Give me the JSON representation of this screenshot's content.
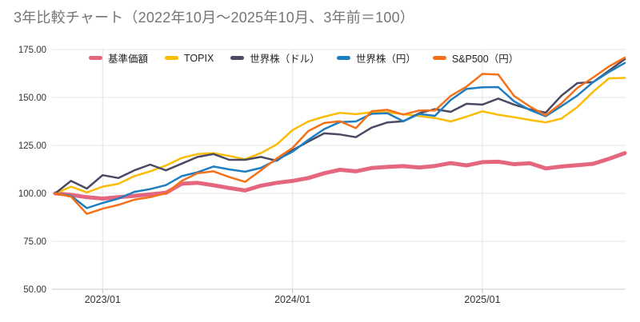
{
  "title": "3年比較チャート（2022年10月～2025年10月、3年前＝100）",
  "legend": [
    {
      "label": "基準価額",
      "color": "#E5667F"
    },
    {
      "label": "TOPIX",
      "color": "#FBBC04"
    },
    {
      "label": "世界株（ドル）",
      "color": "#4C4A63"
    },
    {
      "label": "世界株（円）",
      "color": "#1F7EC2"
    },
    {
      "label": "S&P500（円）",
      "color": "#F57119"
    }
  ],
  "chart_data": {
    "type": "line",
    "title": "3年比較チャート（2022年10月～2025年10月、3年前＝100）",
    "x_start": "2022/10",
    "x_end": "2025/10",
    "baseline_note": "3年前＝100",
    "grid": true,
    "legend_position": "top",
    "y_axis": {
      "min": 50,
      "max": 175,
      "ticks": [
        175,
        150,
        125,
        100,
        75,
        50
      ],
      "tick_labels": [
        "175.00",
        "150.00",
        "125.00",
        "100.00",
        "75.00",
        "50.00"
      ]
    },
    "x_axis": {
      "tick_labels": [
        "2023/01",
        "2024/01",
        "2025/01"
      ],
      "tick_month_index": [
        3,
        15,
        27
      ],
      "months_total": 37
    },
    "series": [
      {
        "name": "基準価額",
        "color": "#E5667F",
        "line_width": 5,
        "values": [
          100,
          99.2,
          98,
          97.3,
          98,
          98.7,
          99.5,
          100.3,
          105,
          105.5,
          104.2,
          102.8,
          101.5,
          104,
          105.5,
          106.5,
          108,
          110.5,
          112.3,
          111.5,
          113.2,
          113.8,
          114.2,
          113.5,
          114.3,
          115.8,
          114.6,
          116.3,
          116.5,
          115.2,
          115.7,
          113,
          114,
          114.7,
          115.4,
          118,
          121
        ]
      },
      {
        "name": "TOPIX",
        "color": "#FBBC04",
        "line_width": 2.5,
        "values": [
          100,
          103.5,
          100.5,
          103.5,
          105,
          109,
          111.5,
          114.5,
          118.5,
          120.5,
          121,
          119.5,
          117.8,
          121,
          125.5,
          133,
          137.5,
          140,
          142,
          141.3,
          142.3,
          142.3,
          141.3,
          140.3,
          139.3,
          137.5,
          140,
          142.8,
          141,
          139.7,
          138.3,
          137,
          139,
          145,
          153,
          160,
          160.2
        ]
      },
      {
        "name": "世界株（ドル）",
        "color": "#4C4A63",
        "line_width": 2.5,
        "values": [
          100,
          106.5,
          102.5,
          109.5,
          108,
          112,
          115,
          112,
          115.5,
          119,
          120.5,
          117.5,
          117.5,
          119,
          117,
          122.5,
          127,
          131.3,
          130.7,
          129.3,
          134.3,
          137,
          137.6,
          141.8,
          143.9,
          142.5,
          146.7,
          146.3,
          149.4,
          146.3,
          143.8,
          142.1,
          151,
          157.5,
          158,
          164,
          170
        ]
      },
      {
        "name": "世界株（円）",
        "color": "#1F7EC2",
        "line_width": 2.5,
        "values": [
          100,
          98.7,
          92.3,
          95,
          97.3,
          100.8,
          102.2,
          104.3,
          109,
          111,
          114,
          112.5,
          111.3,
          113.3,
          117.5,
          121.7,
          127.9,
          133.5,
          137.2,
          137.5,
          141.5,
          141.8,
          137.6,
          141.4,
          140.4,
          148.7,
          154.5,
          155.3,
          155.4,
          148,
          143.5,
          140.2,
          145.5,
          151,
          158,
          163.3,
          168
        ]
      },
      {
        "name": "S&P500（円）",
        "color": "#F57119",
        "line_width": 2.5,
        "values": [
          100,
          98.3,
          89.3,
          92,
          94,
          96.7,
          98,
          100.1,
          106.5,
          110.5,
          111.5,
          108.5,
          106,
          112,
          118.2,
          123.7,
          132.5,
          136.7,
          137.6,
          134,
          142.8,
          143.6,
          141.1,
          143.2,
          143.2,
          150.8,
          155.7,
          162.3,
          162,
          150.8,
          145.3,
          140.7,
          147,
          155,
          160.4,
          166.2,
          170.8
        ]
      }
    ]
  }
}
